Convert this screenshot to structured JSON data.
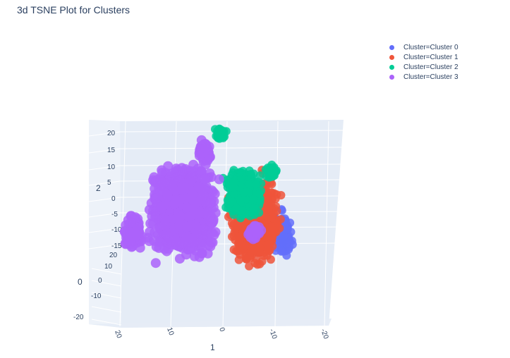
{
  "chart_data": {
    "type": "scatter",
    "title": "3d TSNE Plot for Clusters",
    "axes": {
      "x": {
        "label": "1",
        "ticks": [
          "20",
          "10",
          "0",
          "-10",
          "-20"
        ]
      },
      "y": {
        "label": "0",
        "ticks": [
          "20",
          "10",
          "0",
          "-10",
          "-20"
        ]
      },
      "z": {
        "label": "2",
        "ticks": [
          "20",
          "15",
          "10",
          "5",
          "0",
          "-5",
          "-10",
          "-15"
        ]
      }
    },
    "legend_position": "top-right",
    "grid": true,
    "series": [
      {
        "name": "Cluster=Cluster 0",
        "color": "#636efa"
      },
      {
        "name": "Cluster=Cluster 1",
        "color": "#EF553B"
      },
      {
        "name": "Cluster=Cluster 2",
        "color": "#00cc96"
      },
      {
        "name": "Cluster=Cluster 3",
        "color": "#ab63fa"
      }
    ]
  }
}
